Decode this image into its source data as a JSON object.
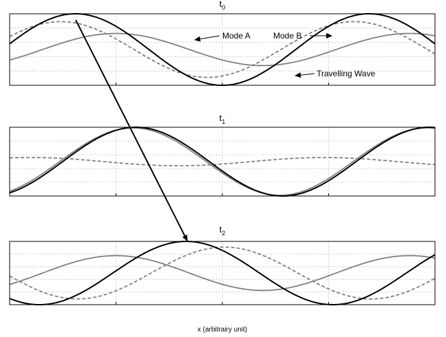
{
  "chart_data": [
    {
      "type": "line",
      "title": "t",
      "title_sub": "0",
      "xlim": [
        0,
        1
      ],
      "ylim": [
        -1,
        1
      ],
      "grid": true,
      "series": [
        {
          "name": "Mode A",
          "color": "#808080",
          "dash": false,
          "amplitude": 0.45,
          "phase_x": 0.25
        },
        {
          "name": "Mode B",
          "color": "#808080",
          "dash": true,
          "amplitude": 0.78,
          "phase_x": 0.12
        },
        {
          "name": "Travelling Wave",
          "color": "#000000",
          "dash": false,
          "amplitude": 1.0,
          "phase_x": 0.155
        }
      ],
      "annotations": [
        "Mode A",
        "Mode B",
        "Travelling Wave"
      ]
    },
    {
      "type": "line",
      "title": "t",
      "title_sub": "1",
      "xlim": [
        0,
        1
      ],
      "ylim": [
        -1,
        1
      ],
      "grid": true,
      "series": [
        {
          "name": "Mode A",
          "color": "#808080",
          "dash": false,
          "amplitude": 0.98,
          "phase_x": 0.29
        },
        {
          "name": "Mode B",
          "color": "#808080",
          "dash": true,
          "amplitude": 0.12,
          "phase_x": 0.05
        },
        {
          "name": "Travelling Wave",
          "color": "#000000",
          "dash": false,
          "amplitude": 1.0,
          "phase_x": 0.297
        }
      ]
    },
    {
      "type": "line",
      "title": "t",
      "title_sub": "2",
      "xlim": [
        0,
        1
      ],
      "ylim": [
        -1,
        1
      ],
      "grid": true,
      "series": [
        {
          "name": "Mode A",
          "color": "#808080",
          "dash": false,
          "amplitude": 0.55,
          "phase_x": 0.25
        },
        {
          "name": "Mode B",
          "color": "#808080",
          "dash": true,
          "amplitude": 0.82,
          "phase_x": 0.505
        },
        {
          "name": "Travelling Wave",
          "color": "#000000",
          "dash": false,
          "amplitude": 1.0,
          "phase_x": 0.415
        }
      ]
    }
  ],
  "xlabel": "x (arbitrairy unit)",
  "wavelength": 0.69
}
